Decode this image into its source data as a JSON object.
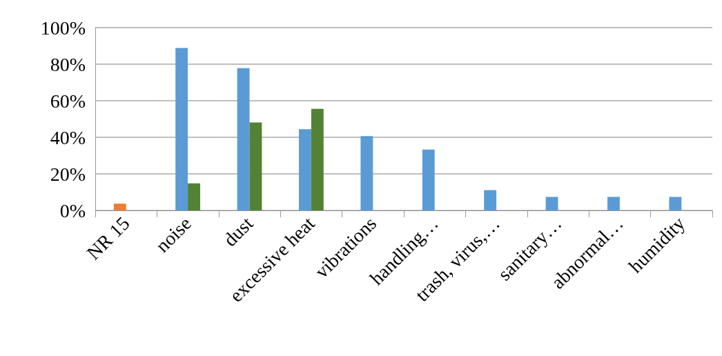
{
  "chart_data": {
    "type": "bar",
    "categories": [
      "NR 15",
      "noise",
      "dust",
      "excessive heat",
      "vibrations",
      "handling…",
      "trash, virus,…",
      "sanitary…",
      "abnormal…",
      "humidity"
    ],
    "series": [
      {
        "color": "#5b9bd5",
        "colors": [
          "#ed7d31",
          "#5b9bd5",
          "#5b9bd5",
          "#5b9bd5",
          "#5b9bd5",
          "#5b9bd5",
          "#5b9bd5",
          "#5b9bd5",
          "#5b9bd5",
          "#5b9bd5"
        ],
        "values": [
          3.7,
          88.9,
          77.8,
          44.4,
          40.7,
          33.3,
          11.1,
          7.4,
          7.4,
          7.4
        ]
      },
      {
        "color": "#548235",
        "values": [
          null,
          14.8,
          48.1,
          55.6,
          null,
          null,
          null,
          null,
          null,
          null
        ]
      }
    ],
    "ylim": [
      0,
      100
    ],
    "yticks": [
      {
        "value": 0,
        "label": "0%"
      },
      {
        "value": 20,
        "label": "20%"
      },
      {
        "value": 40,
        "label": "40%"
      },
      {
        "value": 60,
        "label": "60%"
      },
      {
        "value": 80,
        "label": "80%"
      },
      {
        "value": 100,
        "label": "100%"
      }
    ],
    "grid": "y"
  }
}
